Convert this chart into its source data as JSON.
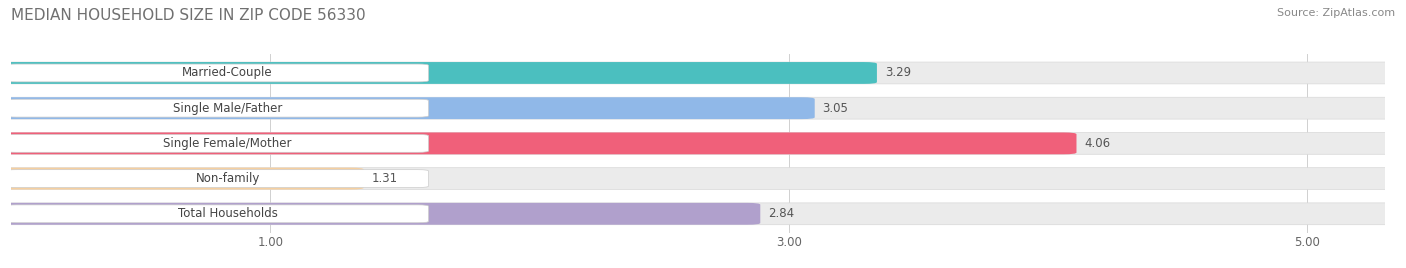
{
  "title": "MEDIAN HOUSEHOLD SIZE IN ZIP CODE 56330",
  "source": "Source: ZipAtlas.com",
  "categories": [
    "Married-Couple",
    "Single Male/Father",
    "Single Female/Mother",
    "Non-family",
    "Total Households"
  ],
  "values": [
    3.29,
    3.05,
    4.06,
    1.31,
    2.84
  ],
  "bar_colors": [
    "#4BBFBF",
    "#90B8E8",
    "#F0607A",
    "#F5CFA0",
    "#B0A0CC"
  ],
  "xlim": [
    0,
    5.3
  ],
  "xticks": [
    1.0,
    3.0,
    5.0
  ],
  "title_fontsize": 11,
  "source_fontsize": 8,
  "label_fontsize": 8.5,
  "value_fontsize": 8.5,
  "background_color": "#ffffff",
  "bar_bg_color": "#ebebeb",
  "bar_height": 0.52,
  "bar_gap": 0.35
}
